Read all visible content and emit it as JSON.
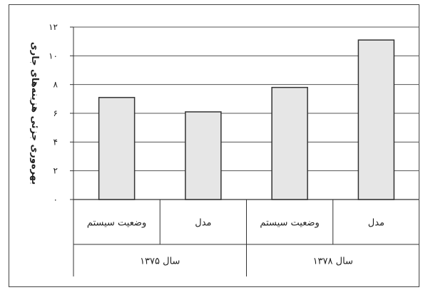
{
  "chart_data": {
    "type": "bar",
    "title": "",
    "xlabel": "",
    "ylabel": "بهره‌وری جزئی هزینه‌های جاری",
    "ylim": [
      0,
      12
    ],
    "yticks": [
      0,
      2,
      4,
      6,
      8,
      10,
      12
    ],
    "ytick_labels": [
      "۰",
      "۲",
      "۴",
      "۶",
      "۸",
      "۱۰",
      "۱۲"
    ],
    "grid": true,
    "groups": [
      {
        "label": "سال ۱۳۷۵",
        "bars": [
          {
            "category": "وضعیت سیستم",
            "value": 7.1
          },
          {
            "category": "مدل",
            "value": 6.1
          }
        ]
      },
      {
        "label": "سال ۱۳۷۸",
        "bars": [
          {
            "category": "وضعیت سیستم",
            "value": 7.8
          },
          {
            "category": "مدل",
            "value": 11.1
          }
        ]
      }
    ],
    "colors": {
      "bar_fill": "#e6e6e6",
      "bar_stroke": "#333333",
      "grid": "#555555"
    }
  }
}
